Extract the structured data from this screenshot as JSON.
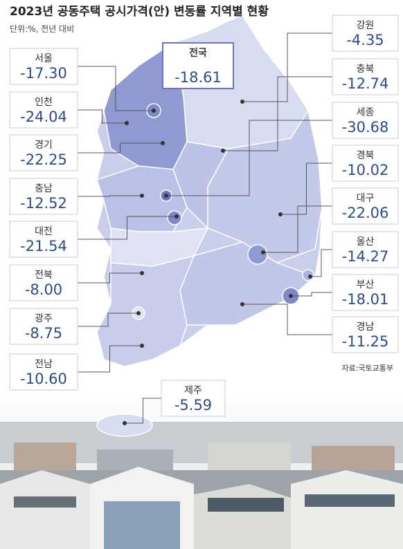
{
  "header": {
    "title": "2023년 공동주택 공시가격(안) 변동률 지역별 현황",
    "unit": "단위:%, 전년 대비"
  },
  "national": {
    "name": "전국",
    "value": "-18.61"
  },
  "regions": [
    {
      "name": "서울",
      "value": "-17.30"
    },
    {
      "name": "인천",
      "value": "-24.04"
    },
    {
      "name": "경기",
      "value": "-22.25"
    },
    {
      "name": "충남",
      "value": "-12.52"
    },
    {
      "name": "대전",
      "value": "-21.54"
    },
    {
      "name": "전북",
      "value": "-8.00"
    },
    {
      "name": "광주",
      "value": "-8.75"
    },
    {
      "name": "전남",
      "value": "-10.60"
    },
    {
      "name": "강원",
      "value": "-4.35"
    },
    {
      "name": "충북",
      "value": "-12.74"
    },
    {
      "name": "세종",
      "value": "-30.68"
    },
    {
      "name": "경북",
      "value": "-10.02"
    },
    {
      "name": "대구",
      "value": "-22.06"
    },
    {
      "name": "울산",
      "value": "-14.27"
    },
    {
      "name": "부산",
      "value": "-18.01"
    },
    {
      "name": "경남",
      "value": "-11.25"
    },
    {
      "name": "제주",
      "value": "-5.59"
    }
  ],
  "source": "자료:국토교통부"
}
